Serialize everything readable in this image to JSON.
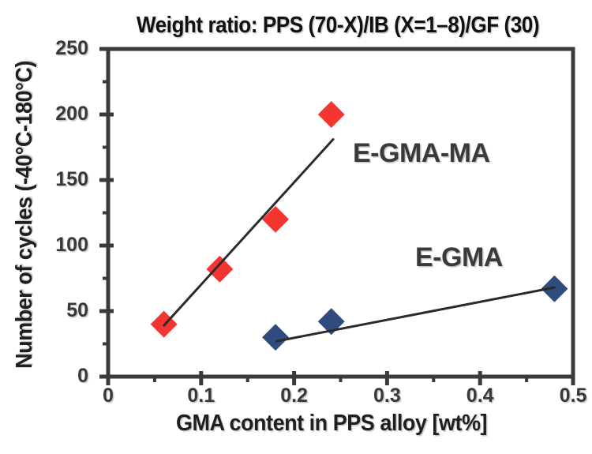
{
  "chart_data": {
    "type": "scatter",
    "title": "Weight ratio: PPS (70-X)/IB (X=1–8)/GF (30)",
    "xlabel": "GMA content in PPS alloy [wt%]",
    "ylabel": "Number of cycles (-40°C-180°C)",
    "xlim": [
      0,
      0.5
    ],
    "ylim": [
      0,
      250
    ],
    "x_major_ticks": [
      0,
      0.1,
      0.2,
      0.3,
      0.4,
      0.5
    ],
    "x_tick_labels": [
      "0",
      "0.1",
      "0.2",
      "0.3",
      "0.4",
      "0.5"
    ],
    "x_minor_ticks": [
      0.05,
      0.15,
      0.25,
      0.35,
      0.45
    ],
    "y_major_ticks": [
      0,
      50,
      100,
      150,
      200,
      250
    ],
    "y_tick_labels": [
      "0",
      "50",
      "100",
      "150",
      "200",
      "250"
    ],
    "y_minor_ticks": [
      25,
      75,
      125,
      175,
      225
    ],
    "grid": false,
    "legend_position": "inline-annotations",
    "series": [
      {
        "name": "E-GMA-MA",
        "marker": "diamond",
        "color": "#F43530",
        "points": [
          [
            0.06,
            40
          ],
          [
            0.12,
            82
          ],
          [
            0.18,
            120
          ],
          [
            0.24,
            200
          ]
        ],
        "trendline": [
          [
            0.06,
            39
          ],
          [
            0.242,
            181
          ]
        ]
      },
      {
        "name": "E-GMA",
        "marker": "diamond",
        "color": "#2F4C7E",
        "points": [
          [
            0.18,
            30
          ],
          [
            0.24,
            42
          ],
          [
            0.48,
            67
          ]
        ],
        "trendline": [
          [
            0.181,
            27
          ],
          [
            0.48,
            68
          ]
        ]
      }
    ]
  },
  "colors": {
    "axis": "#3A3A3A",
    "trendline": "#2B2B2B",
    "tick_text": "#383838",
    "title_text": "#111111",
    "background": "#FFFFFF"
  }
}
